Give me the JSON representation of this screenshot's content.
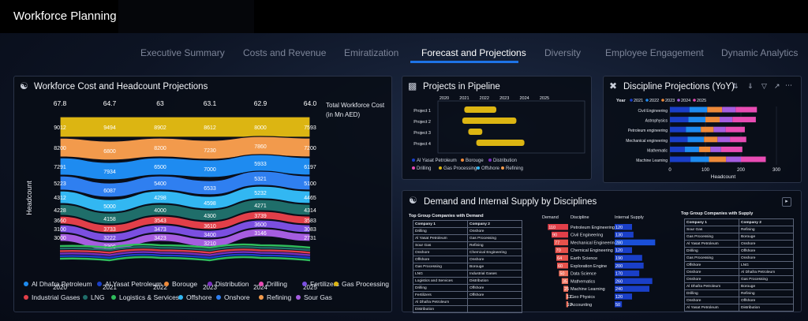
{
  "app": {
    "title": "Workforce Planning"
  },
  "tabs": [
    {
      "label": "Executive Summary",
      "active": false
    },
    {
      "label": "Costs and Revenue",
      "active": false
    },
    {
      "label": "Emiratization",
      "active": false
    },
    {
      "label": "Forecast and Projections",
      "active": true
    },
    {
      "label": "Diversity",
      "active": false
    },
    {
      "label": "Employee Engagement",
      "active": false
    },
    {
      "label": "Dynamic Analytics",
      "active": false
    }
  ],
  "colors": {
    "accent": "#1e73e6",
    "companies": {
      "Al Dhafra Petroleum": "#1e8bf0",
      "Al Yasat Petroleum": "#1a3fc8",
      "Borouge": "#ee8a3a",
      "Distribution": "#7a2fbf",
      "Drilling": "#e94cb4",
      "Fertilizers": "#7b4fe0",
      "Gas Processing": "#dcb512",
      "Industrial Gases": "#e23f49",
      "LNG": "#1f6e6a",
      "Logistics & Services": "#2fbd5c",
      "Offshore": "#32b7f2",
      "Onshore": "#2f7ff0",
      "Refining": "#f29a4c",
      "Sour Gas": "#a55de0"
    }
  },
  "cost_panel": {
    "title": "Workforce Cost and Headcount Projections",
    "y_axis_label": "Headcount",
    "total_label_line1": "Total Workforce Cost",
    "total_label_line2": "(in Mn AED)",
    "chart_data": {
      "type": "area",
      "x": [
        "2020",
        "2021",
        "2022",
        "2023",
        "2024",
        "2025"
      ],
      "totals": [
        "67.8",
        "64.7",
        "63",
        "63.1",
        "62.9",
        "64.0"
      ],
      "series": [
        {
          "name": "Gas Processing",
          "values": [
            "9012",
            "9494",
            "8902",
            "8612",
            "8000",
            "7593"
          ]
        },
        {
          "name": "Refining",
          "values": [
            "8200",
            "6800",
            "8200",
            "7230",
            "7860",
            "7200"
          ]
        },
        {
          "name": "Al Dhafra Petroleum",
          "values": [
            "7291",
            "7934",
            "6500",
            "7000",
            "5933",
            "6197"
          ]
        },
        {
          "name": "Onshore",
          "values": [
            "5223",
            "6087",
            "5400",
            "6533",
            "5321",
            "5100"
          ]
        },
        {
          "name": "Offshore",
          "values": [
            "4312",
            "5000",
            "4298",
            "4598",
            "5232",
            "4465"
          ]
        },
        {
          "name": "LNG",
          "values": [
            "4228",
            "4158",
            "4000",
            "4300",
            "4271",
            "4314"
          ]
        },
        {
          "name": "Industrial Gases",
          "values": [
            "3660",
            "3733",
            "3543",
            "3610",
            "3739",
            "3583"
          ]
        },
        {
          "name": "Fertilizers",
          "values": [
            "3100",
            "3222",
            "3473",
            "3400",
            "3600",
            "3083"
          ]
        },
        {
          "name": "Sour Gas",
          "values": [
            "3000",
            "3200",
            "3423",
            "3210",
            "3146",
            "2731"
          ]
        }
      ]
    },
    "legend": [
      "Al Dhafra Petroleum",
      "Al Yasat Petroleum",
      "Borouge",
      "Distribution",
      "Drilling",
      "Fertilizers",
      "Gas Processing",
      "Industrial Gases",
      "LNG",
      "Logistics & Services",
      "Offshore",
      "Onshore",
      "Refining",
      "Sour Gas"
    ]
  },
  "pipeline_panel": {
    "title": "Projects in Pipeline",
    "chart_data": {
      "type": "bar",
      "x_ticks": [
        "2020",
        "2021",
        "2022",
        "2023",
        "2024",
        "2025"
      ],
      "projects": [
        {
          "name": "Project 1",
          "start": 2021.0,
          "end": 2022.6
        },
        {
          "name": "Project 2",
          "start": 2020.9,
          "end": 2023.6
        },
        {
          "name": "Project 3",
          "start": 2021.2,
          "end": 2021.9
        },
        {
          "name": "Project 4",
          "start": 2021.6,
          "end": 2024.0
        }
      ]
    },
    "legend": [
      "Al Yasat Petroleum",
      "Borouge",
      "Distribution",
      "Drilling",
      "Gas Processing",
      "Offshore",
      "Refining"
    ]
  },
  "discipline_panel": {
    "title": "Discipline Projections (YoY)",
    "year_label": "Year",
    "x_label": "Headcount",
    "chart_data": {
      "type": "bar",
      "stacked": true,
      "x_ticks": [
        "0",
        "100",
        "200",
        "300"
      ],
      "xlim": [
        0,
        300
      ],
      "years": [
        "2021",
        "2022",
        "2023",
        "2024",
        "2025"
      ],
      "categories": [
        "Civil Engineering",
        "Astrophysics",
        "Petroleum engineering",
        "Mechanical engineering",
        "Mathematic",
        "Machine Learning"
      ],
      "series": [
        {
          "name": "2021",
          "values": [
            55,
            52,
            45,
            50,
            42,
            58
          ]
        },
        {
          "name": "2022",
          "values": [
            50,
            48,
            42,
            46,
            40,
            52
          ]
        },
        {
          "name": "2023",
          "values": [
            42,
            40,
            36,
            38,
            32,
            48
          ]
        },
        {
          "name": "2024",
          "values": [
            38,
            36,
            34,
            35,
            30,
            42
          ]
        },
        {
          "name": "2025",
          "values": [
            60,
            66,
            54,
            46,
            60,
            70
          ]
        }
      ]
    }
  },
  "demand_panel": {
    "title": "Demand and Internal Supply by Disciplines",
    "left_title": "Top Group Companies with Demand",
    "right_title": "Top Group Companies with Supply",
    "col_company1": "Company 1",
    "col_company2": "Company 2",
    "col_demand": "Demand",
    "col_discipline": "Discipline",
    "col_supply": "Internal Supply",
    "left_rows": [
      [
        "Drilling",
        "Onshore"
      ],
      [
        "Al Yasat Petroleum",
        "Gas Processing"
      ],
      [
        "Sour Gas",
        "Refining"
      ],
      [
        "Onshore",
        "Chemical Engineering"
      ],
      [
        "Offshore",
        "Onshore"
      ],
      [
        "Gas Processing",
        "Borouge"
      ],
      [
        "LNG",
        "Industrial Gases"
      ],
      [
        "Logistics and Services",
        "Distribution"
      ],
      [
        "Drilling",
        "Offshore"
      ],
      [
        "Fertilizers",
        "Offshore"
      ],
      [
        "Al Dhafra Petroleum",
        ""
      ],
      [
        "Distribution",
        ""
      ]
    ],
    "right_rows": [
      [
        "Sour Gas",
        "Refining"
      ],
      [
        "Gas Processing",
        "Borouge"
      ],
      [
        "Al Yasat Petroleum",
        "Onshore"
      ],
      [
        "Drilling",
        "Offshore"
      ],
      [
        "Gas Processing",
        "Onshore"
      ],
      [
        "Offshore",
        "LNG"
      ],
      [
        "Onshore",
        "Al Dhafra Petroleum"
      ],
      [
        "Onshore",
        "Gas Processing"
      ],
      [
        "Al Dhafra Petroleum",
        "Borouge"
      ],
      [
        "Drilling",
        "Refining"
      ],
      [
        "Onshore",
        "Offshore"
      ],
      [
        "Al Yasat Petroleum",
        "Distribution"
      ]
    ],
    "chart_data": {
      "type": "bar",
      "categories": [
        "Petroleum Engineering",
        "Civil Engineering",
        "Mechanical Engineering",
        "Chemical Engineering",
        "Earth Science",
        "Exploration Engine",
        "Data Science",
        "Mathematics",
        "Machine Learning",
        "Geo Physics",
        "Accounting"
      ],
      "demand": [
        110,
        90,
        77,
        70,
        64,
        60,
        50,
        35,
        25,
        12,
        10
      ],
      "supply": [
        120,
        130,
        280,
        120,
        190,
        200,
        170,
        260,
        240,
        120,
        50
      ]
    }
  }
}
